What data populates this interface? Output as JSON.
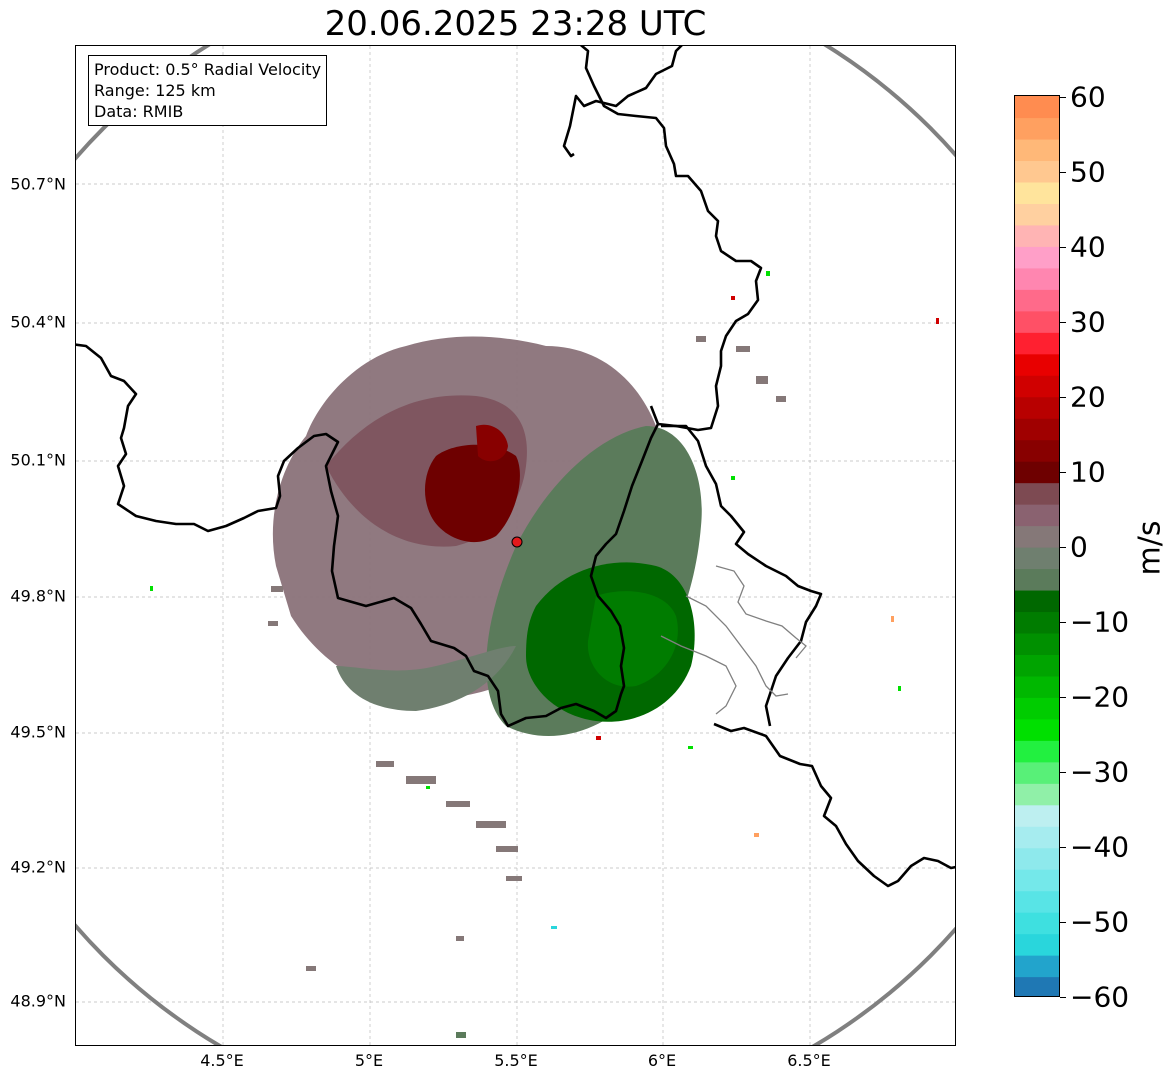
{
  "title": "20.06.2025 23:28 UTC",
  "info": {
    "product": "Product: 0.5° Radial Velocity",
    "range": "Range: 125 km",
    "source": "Data: RMIB"
  },
  "map": {
    "lat_ticks": [
      "50.7°N",
      "50.4°N",
      "50.1°N",
      "49.8°N",
      "49.5°N",
      "49.2°N",
      "48.9°N"
    ],
    "lon_ticks": [
      "4.5°E",
      "5°E",
      "5.5°E",
      "6°E",
      "6.5°E"
    ],
    "radar_site": {
      "lon": 5.5,
      "lat": 49.92
    },
    "range_ring_color": "#808080",
    "radar_marker_color": "#e31a1c"
  },
  "colorbar": {
    "label": "m/s",
    "ticks": [
      "60",
      "50",
      "40",
      "30",
      "20",
      "10",
      "0",
      "−10",
      "−20",
      "−30",
      "−40",
      "−50",
      "−60"
    ],
    "min": -60,
    "max": 60,
    "colors": [
      "#1f78b4",
      "#22a4cc",
      "#29d6dc",
      "#3ee0e0",
      "#58e4e6",
      "#74e8ea",
      "#8ee9ec",
      "#a6ecef",
      "#bdeff0",
      "#90f0a8",
      "#58f078",
      "#22f040",
      "#00e000",
      "#00cc00",
      "#00b800",
      "#00a400",
      "#009000",
      "#007c00",
      "#006800",
      "#5b7b5b",
      "#6f7f6f",
      "#857878",
      "#8a6270",
      "#7d4a52",
      "#6e0000",
      "#880000",
      "#a00000",
      "#b80000",
      "#d00000",
      "#e80000",
      "#ff2030",
      "#ff5066",
      "#ff6a8a",
      "#ff86b0",
      "#ff9fc8",
      "#ffb4b4",
      "#ffd0a0",
      "#ffe49c",
      "#ffc890",
      "#ffb878",
      "#ffa060",
      "#ff8c50"
    ]
  }
}
